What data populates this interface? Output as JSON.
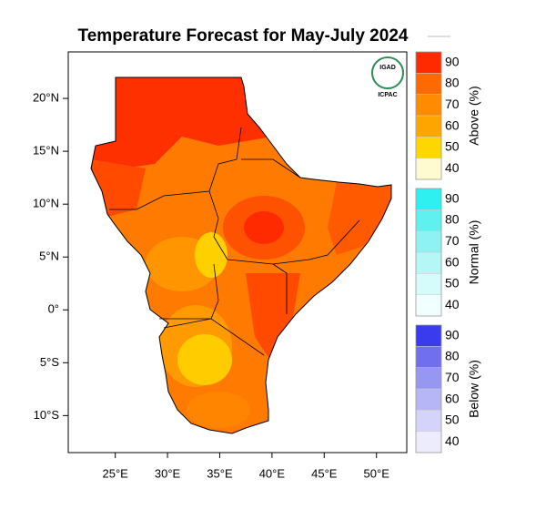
{
  "title": "Temperature Forecast for May-July 2024",
  "map": {
    "xlim": [
      20.5,
      52.9
    ],
    "ylim": [
      -13.5,
      24.4
    ],
    "xticks": [
      {
        "value": 25,
        "label": "25°E"
      },
      {
        "value": 30,
        "label": "30°E"
      },
      {
        "value": 35,
        "label": "35°E"
      },
      {
        "value": 40,
        "label": "40°E"
      },
      {
        "value": 45,
        "label": "45°E"
      },
      {
        "value": 50,
        "label": "50°E"
      }
    ],
    "yticks": [
      {
        "value": 20,
        "label": "20°N"
      },
      {
        "value": 15,
        "label": "15°N"
      },
      {
        "value": 10,
        "label": "10°N"
      },
      {
        "value": 5,
        "label": "5°N"
      },
      {
        "value": 0,
        "label": "0°"
      },
      {
        "value": -5,
        "label": "5°S"
      },
      {
        "value": -10,
        "label": "10°S"
      }
    ]
  },
  "logo": {
    "name": "IGAD",
    "org": "ICPAC"
  },
  "legends": [
    {
      "title": "Above (%)",
      "levels": [
        40,
        50,
        60,
        70,
        80,
        90
      ],
      "colors": [
        "#fffbd0",
        "#ffd700",
        "#ffa500",
        "#ff8c00",
        "#ff6a00",
        "#ff2a00"
      ]
    },
    {
      "title": "Normal (%)",
      "levels": [
        40,
        50,
        60,
        70,
        80,
        90
      ],
      "colors": [
        "#f0ffff",
        "#d6fbfb",
        "#b5f7f7",
        "#8ef2f2",
        "#5ff0f0",
        "#2ef0f0"
      ]
    },
    {
      "title": "Below (%)",
      "levels": [
        40,
        50,
        60,
        70,
        80,
        90
      ],
      "colors": [
        "#ececfc",
        "#d4d4fa",
        "#b6b6f7",
        "#9696f3",
        "#6f6ff0",
        "#3a3aef"
      ]
    }
  ]
}
